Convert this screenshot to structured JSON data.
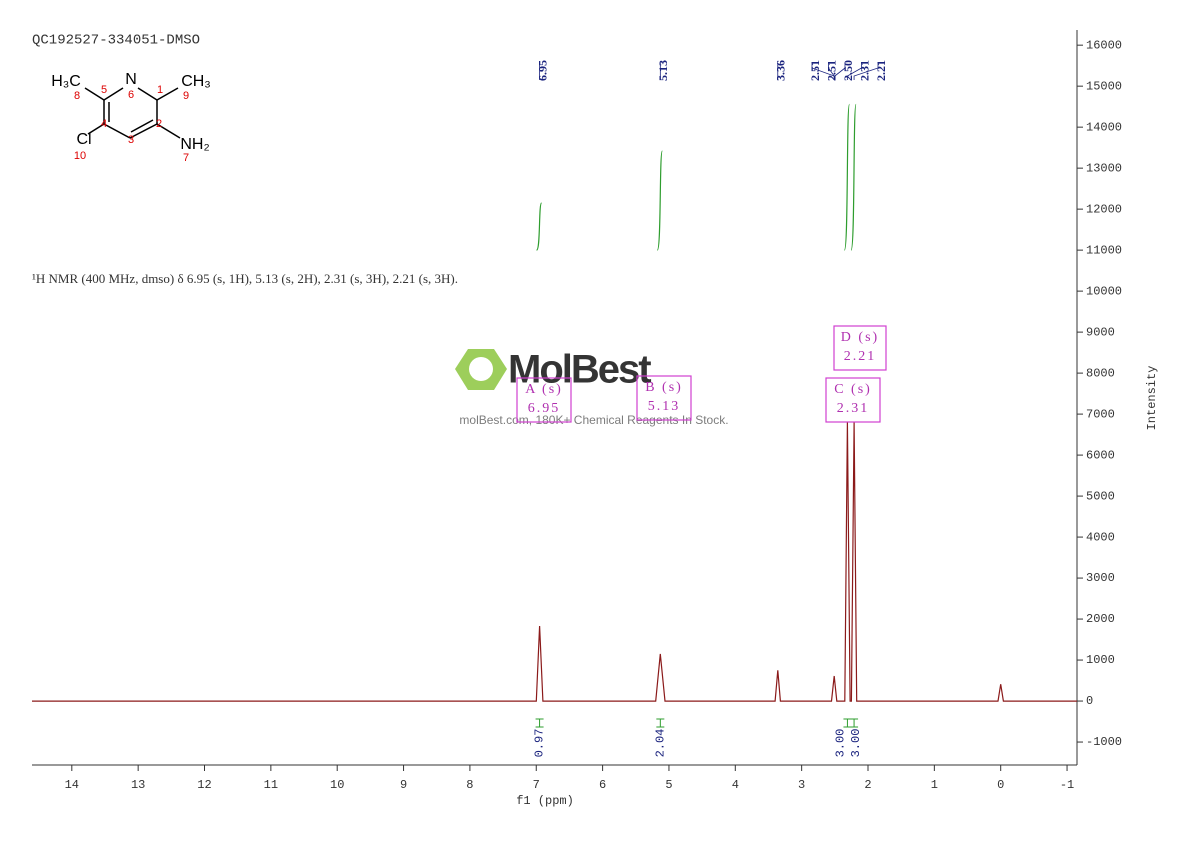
{
  "chart_data": {
    "type": "nmr",
    "title": "QC192527-334051-DMSO",
    "description": "¹H NMR (400 MHz, dmso) δ 6.95 (s, 1H), 5.13 (s, 2H), 2.31 (s, 3H), 2.21 (s, 3H).",
    "x_label": "f1 (ppm)",
    "y_label": "Intensity",
    "xlim": [
      14.6,
      -1.15
    ],
    "ylim": [
      -1560,
      16370
    ],
    "xticks": [
      14,
      13,
      12,
      11,
      10,
      9,
      8,
      7,
      6,
      5,
      4,
      3,
      2,
      1,
      0,
      -1
    ],
    "yticks": [
      -1000,
      0,
      1000,
      2000,
      3000,
      4000,
      5000,
      6000,
      7000,
      8000,
      9000,
      10000,
      11000,
      12000,
      13000,
      14000,
      15000,
      16000
    ],
    "series": [
      {
        "color": "#8b1a1a",
        "x": [
          14.6,
          7.0,
          6.95,
          6.9,
          5.2,
          5.13,
          5.06,
          3.4,
          3.36,
          3.32,
          2.55,
          2.51,
          2.47,
          2.35,
          2.31,
          2.27,
          2.25,
          2.21,
          2.17,
          0.04,
          0,
          -0.04,
          -1.15
        ],
        "values": [
          0,
          0,
          1830,
          0,
          0,
          1150,
          0,
          0,
          750,
          0,
          0,
          610,
          0,
          0,
          6800,
          0,
          0,
          6800,
          0,
          0,
          410,
          0,
          0
        ]
      }
    ],
    "peak_labels": [
      6.95,
      5.13,
      3.36,
      2.51,
      2.51,
      {
        "value": 2.5,
        "label": "2.50"
      },
      2.31,
      2.21
    ],
    "integrals": {
      "x": [
        6.95,
        5.13,
        2.31,
        2.21
      ],
      "values": [
        0.97,
        2.04,
        3,
        3
      ],
      "value_labels": [
        "0.97",
        "2.04",
        "3.00",
        "3.00"
      ]
    },
    "multiplets": [
      {
        "name": "A (s)",
        "shift": 6.95
      },
      {
        "name": "B (s)",
        "shift": 5.13
      },
      {
        "name": "C (s)",
        "shift": 2.31
      },
      {
        "name": "D (s)",
        "shift": 2.21
      }
    ],
    "structure": {
      "atoms": [
        "H₃C",
        "N",
        "CH₃",
        "Cl",
        "NH₂"
      ],
      "numbers": [
        "8",
        "5",
        "6",
        "1",
        "9",
        "4",
        "2",
        "3",
        "10",
        "7"
      ]
    },
    "watermark": {
      "brand": "MolBest",
      "tagline": "molBest.com, 180K+ Chemical Reagents In Stock."
    }
  }
}
